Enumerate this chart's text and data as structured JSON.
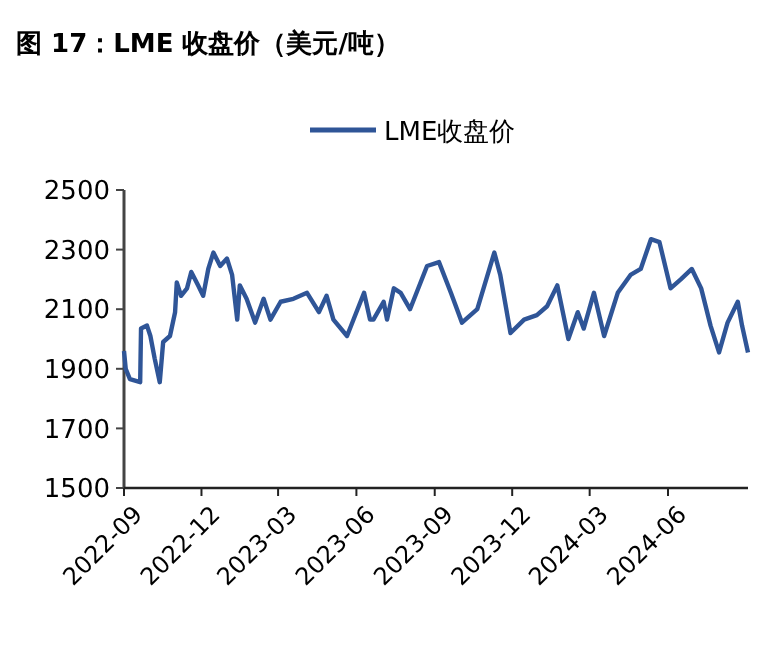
{
  "chart_data": {
    "type": "line",
    "title": "图 17：LME 收盘价（美元/吨）",
    "x": [
      "2022-09-01",
      "2022-09-03",
      "2022-09-08",
      "2022-09-20",
      "2022-09-21",
      "2022-09-28",
      "2022-10-02",
      "2022-10-07",
      "2022-10-13",
      "2022-10-17",
      "2022-10-25",
      "2022-10-31",
      "2022-11-02",
      "2022-11-07",
      "2022-11-14",
      "2022-11-19",
      "2022-11-27",
      "2022-12-03",
      "2022-12-09",
      "2022-12-15",
      "2022-12-23",
      "2022-12-31",
      "2023-01-06",
      "2023-01-12",
      "2023-01-15",
      "2023-01-23",
      "2023-02-02",
      "2023-02-12",
      "2023-02-20",
      "2023-03-04",
      "2023-03-19",
      "2023-04-04",
      "2023-04-18",
      "2023-04-27",
      "2023-05-05",
      "2023-05-21",
      "2023-06-10",
      "2023-06-17",
      "2023-06-21",
      "2023-07-03",
      "2023-07-07",
      "2023-07-15",
      "2023-07-23",
      "2023-08-03",
      "2023-08-23",
      "2023-09-06",
      "2023-09-20",
      "2023-10-03",
      "2023-10-21",
      "2023-11-10",
      "2023-11-17",
      "2023-11-29",
      "2023-12-15",
      "2023-12-30",
      "2024-01-11",
      "2024-01-23",
      "2024-02-05",
      "2024-02-16",
      "2024-02-23",
      "2024-03-06",
      "2024-03-18",
      "2024-04-03",
      "2024-04-18",
      "2024-04-30",
      "2024-05-12",
      "2024-05-22",
      "2024-06-04",
      "2024-06-16",
      "2024-06-29",
      "2024-07-10",
      "2024-07-21",
      "2024-07-31",
      "2024-08-10",
      "2024-08-22",
      "2024-08-27",
      "2024-09-03"
    ],
    "series": [
      {
        "name": "LME收盘价",
        "color": "#2f5597",
        "values": [
          1960,
          1900,
          1865,
          1855,
          2035,
          2045,
          2010,
          1935,
          1855,
          1990,
          2010,
          2090,
          2190,
          2145,
          2170,
          2225,
          2180,
          2145,
          2235,
          2290,
          2245,
          2270,
          2215,
          2065,
          2180,
          2135,
          2055,
          2135,
          2065,
          2125,
          2135,
          2155,
          2090,
          2145,
          2065,
          2010,
          2155,
          2065,
          2065,
          2125,
          2065,
          2170,
          2155,
          2100,
          2245,
          2258,
          2155,
          2055,
          2100,
          2290,
          2215,
          2020,
          2065,
          2080,
          2110,
          2180,
          2000,
          2090,
          2035,
          2155,
          2010,
          2155,
          2215,
          2235,
          2335,
          2325,
          2170,
          2200,
          2235,
          2170,
          2045,
          1955,
          2055,
          2125,
          2045,
          1955
        ]
      }
    ],
    "xlim": [
      "2022-09-01",
      "2024-09-03"
    ],
    "xticks": [
      "2022-09",
      "2022-12",
      "2023-03",
      "2023-06",
      "2023-09",
      "2023-12",
      "2024-03",
      "2024-06"
    ],
    "ylim": [
      1500,
      2500
    ],
    "yticks": [
      1500,
      1700,
      1900,
      2100,
      2300,
      2500
    ],
    "legend": "top",
    "grid": false,
    "line_style": "solid",
    "marker": "none"
  }
}
